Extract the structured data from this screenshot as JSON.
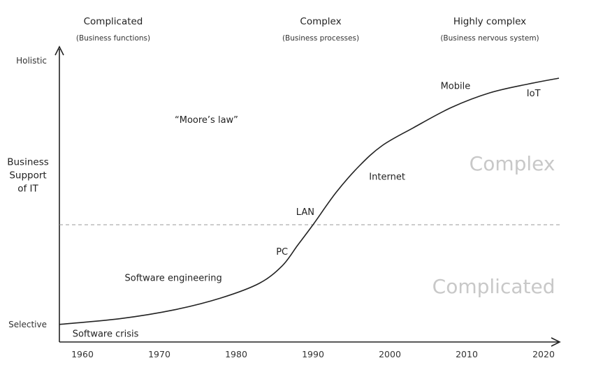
{
  "chart_data": {
    "type": "line",
    "title": "",
    "xlabel": "",
    "ylabel": "Business Support of IT",
    "ylabel_lines": [
      "Business",
      "Support",
      "of IT"
    ],
    "xlim": [
      1957,
      2022
    ],
    "ylim": [
      0,
      100
    ],
    "x_ticks": [
      1960,
      1970,
      1980,
      1990,
      2000,
      2010,
      2020
    ],
    "x_tick_labels": [
      "1960",
      "1970",
      "1980",
      "1990",
      "2000",
      "2010",
      "2020"
    ],
    "y_ticks": [
      {
        "value": 6,
        "label": "Selective"
      },
      {
        "value": 96,
        "label": "Holistic"
      }
    ],
    "threshold": {
      "value": 40,
      "style": "dashed"
    },
    "series": [
      {
        "name": "Business Support of IT",
        "x": [
          1957,
          1965,
          1972,
          1978,
          1983,
          1986,
          1988,
          1990,
          1993,
          1996,
          1999,
          2003,
          2008,
          2013,
          2018,
          2022
        ],
        "y": [
          6,
          8,
          11,
          15,
          20,
          26,
          33,
          40,
          51,
          60,
          67,
          73,
          80,
          85,
          88,
          90
        ]
      }
    ],
    "eras": [
      {
        "title": "Complicated",
        "subtitle": "(Business functions)",
        "x": 1964
      },
      {
        "title": "Complex",
        "subtitle": "(Business processes)",
        "x": 1991
      },
      {
        "title": "Highly complex",
        "subtitle": "(Business nervous system)",
        "x": 2013
      }
    ],
    "annotations": [
      {
        "text": "Software crisis",
        "x": 1958.7,
        "y": 3
      },
      {
        "text": "Software engineering",
        "x": 1965.5,
        "y": 22
      },
      {
        "text": "PC",
        "x": 1985.2,
        "y": 31
      },
      {
        "text": "LAN",
        "x": 1987.8,
        "y": 44.5
      },
      {
        "text": "Internet",
        "x": 1997.3,
        "y": 56.5
      },
      {
        "text": "Mobile",
        "x": 2006.6,
        "y": 87.5
      },
      {
        "text": "IoT",
        "x": 2017.8,
        "y": 85
      },
      {
        "text": "“Moore’s law”",
        "x": 1972,
        "y": 76
      }
    ],
    "zones": [
      {
        "text": "Complex",
        "x": 2021.5,
        "y": 61
      },
      {
        "text": "Complicated",
        "x": 2021.5,
        "y": 19
      }
    ]
  }
}
